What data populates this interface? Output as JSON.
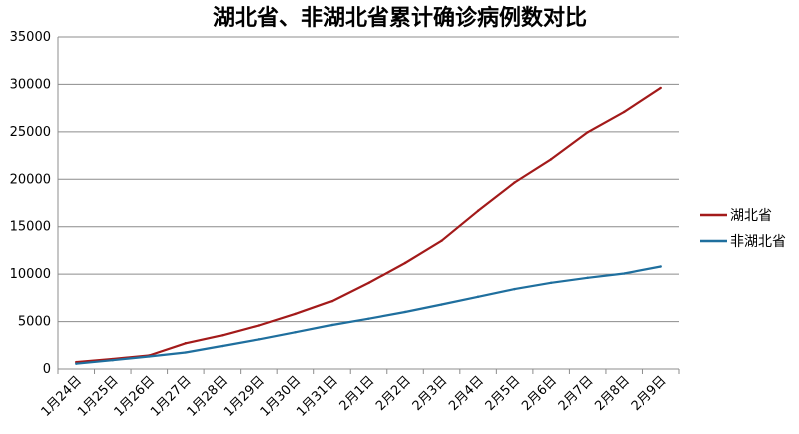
{
  "chart_data": {
    "type": "line",
    "title": "湖北省、非湖北省累计确诊病例数对比",
    "xlabel": "",
    "ylabel": "",
    "categories": [
      "1月24日",
      "1月25日",
      "1月26日",
      "1月27日",
      "1月28日",
      "1月29日",
      "1月30日",
      "1月31日",
      "2月1日",
      "2月2日",
      "2月3日",
      "2月4日",
      "2月5日",
      "2月6日",
      "2月7日",
      "2月8日",
      "2月9日"
    ],
    "series": [
      {
        "name": "湖北省",
        "color": "#a31a1a",
        "values": [
          729,
          1052,
          1423,
          2714,
          3554,
          4586,
          5806,
          7153,
          9074,
          11177,
          13522,
          16678,
          19665,
          22112,
          24953,
          27100,
          29631
        ]
      },
      {
        "name": "非湖北省",
        "color": "#1f6f9e",
        "values": [
          560,
          924,
          1321,
          1742,
          2420,
          3125,
          3865,
          4639,
          5306,
          6013,
          6795,
          7616,
          8421,
          9089,
          9617,
          10063,
          10805
        ]
      }
    ],
    "ylim": [
      0,
      35000
    ],
    "yticks": [
      0,
      5000,
      10000,
      15000,
      20000,
      25000,
      30000,
      35000
    ],
    "grid": true,
    "legend_position": "right"
  }
}
